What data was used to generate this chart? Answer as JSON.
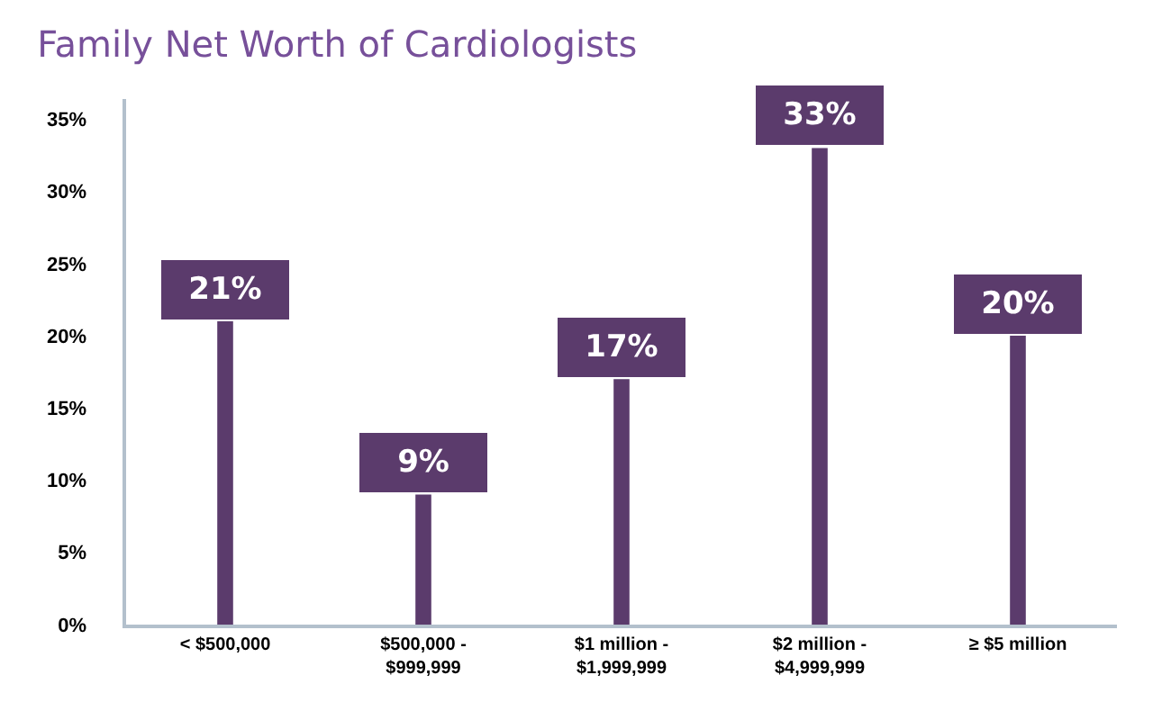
{
  "chart_data": {
    "type": "bar",
    "title": "Family Net Worth of Cardiologists",
    "categories": [
      "< $500,000",
      "$500,000 -\n$999,999",
      "$1 million -\n$1,999,999",
      "$2 million -\n$4,999,999",
      "≥ $5 million"
    ],
    "values": [
      21,
      9,
      17,
      33,
      20
    ],
    "value_labels": [
      "21%",
      "9%",
      "17%",
      "33%",
      "20%"
    ],
    "color": "#5b3b6c",
    "ylim": [
      0,
      36.4
    ],
    "yticks": [
      {
        "value": 0,
        "label": "0%"
      },
      {
        "value": 5,
        "label": "5%"
      },
      {
        "value": 10,
        "label": "10%"
      },
      {
        "value": 15,
        "label": "15%"
      },
      {
        "value": 20,
        "label": "20%"
      },
      {
        "value": 25,
        "label": "25%"
      },
      {
        "value": 30,
        "label": "30%"
      },
      {
        "value": 35,
        "label": "35%"
      }
    ],
    "grid": false,
    "legend": false
  }
}
